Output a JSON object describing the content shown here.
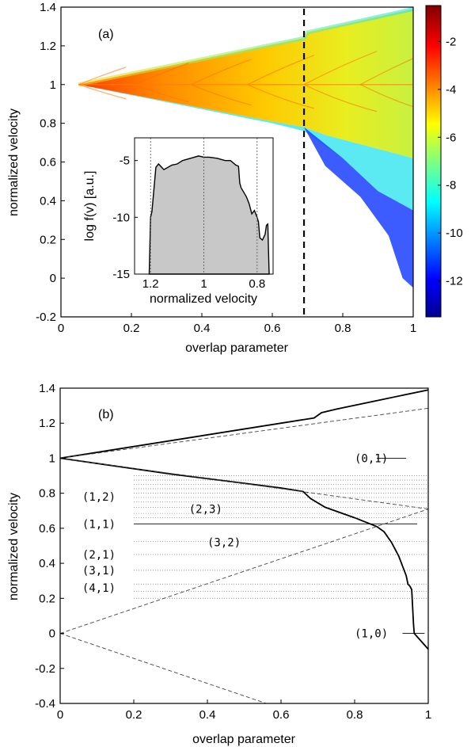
{
  "chart_data": [
    {
      "type": "heatmap",
      "panel_label": "(a)",
      "xlabel": "overlap parameter",
      "ylabel": "normalized velocity",
      "xlim": [
        0,
        1
      ],
      "ylim": [
        -0.2,
        1.4
      ],
      "xticks": [
        "0",
        "0.2",
        "0.4",
        "0.6",
        "0.8",
        "1"
      ],
      "yticks": [
        "-0.2",
        "0",
        "0.2",
        "0.4",
        "0.6",
        "0.8",
        "1",
        "1.2",
        "1.4"
      ],
      "colorbar_ticks": [
        "-2",
        "-4",
        "-6",
        "-8",
        "-10",
        "-12"
      ],
      "colormap": "jet",
      "colorbar_range": [
        -13.5,
        -0.5
      ],
      "dashed_line_x": 0.69,
      "envelope_upper": [
        [
          0.05,
          1.0
        ],
        [
          0.69,
          1.24
        ],
        [
          0.7,
          1.27
        ],
        [
          1.0,
          1.39
        ]
      ],
      "envelope_lower": [
        [
          0.05,
          1.0
        ],
        [
          0.6,
          0.81
        ],
        [
          0.69,
          0.78
        ],
        [
          0.75,
          0.58
        ],
        [
          0.85,
          0.42
        ],
        [
          0.93,
          0.22
        ],
        [
          0.97,
          0.0
        ],
        [
          1.0,
          -0.05
        ]
      ],
      "inset": {
        "type": "area",
        "xlabel": "normalized velocity",
        "ylabel": "log f(v) [a.u.]",
        "xticks": [
          "1.2",
          "1",
          "0.8"
        ],
        "yticks": [
          "-5",
          "-10",
          "-15"
        ],
        "xlim": [
          1.26,
          0.74
        ],
        "ylim": [
          -15,
          -3
        ],
        "vlines": [
          1.2,
          1.0,
          0.8
        ],
        "x": [
          1.205,
          1.2,
          1.195,
          1.19,
          1.18,
          1.17,
          1.15,
          1.12,
          1.1,
          1.08,
          1.05,
          1.02,
          1.0,
          0.98,
          0.95,
          0.92,
          0.9,
          0.88,
          0.87,
          0.865,
          0.86,
          0.85,
          0.84,
          0.83,
          0.82,
          0.81,
          0.8,
          0.795,
          0.79,
          0.78,
          0.77,
          0.765,
          0.76,
          0.755
        ],
        "y": [
          -15,
          -10,
          -9.5,
          -8.2,
          -5.6,
          -5.3,
          -5.8,
          -5.4,
          -5.3,
          -5.0,
          -4.8,
          -4.6,
          -4.7,
          -4.7,
          -4.8,
          -5.0,
          -5.0,
          -5.4,
          -5.5,
          -7.0,
          -7.4,
          -7.8,
          -8.2,
          -8.8,
          -9.7,
          -9.4,
          -10.0,
          -10.4,
          -11.8,
          -12.0,
          -11.5,
          -10.7,
          -10.6,
          -15
        ]
      }
    },
    {
      "type": "line",
      "panel_label": "(b)",
      "xlabel": "overlap parameter",
      "ylabel": "normalized velocity",
      "xlim": [
        0,
        1
      ],
      "ylim": [
        -0.4,
        1.4
      ],
      "xticks": [
        "0",
        "0.2",
        "0.4",
        "0.6",
        "0.8",
        "1"
      ],
      "yticks": [
        "-0.4",
        "-0.2",
        "0",
        "0.2",
        "0.4",
        "0.6",
        "0.8",
        "1",
        "1.2",
        "1.4"
      ],
      "series": [
        {
          "style": "solid",
          "x": [
            0,
            0.69,
            0.71,
            0.75,
            1.0
          ],
          "y": [
            1.0,
            1.23,
            1.26,
            1.28,
            1.39
          ]
        },
        {
          "style": "solid",
          "x": [
            0,
            0.3,
            0.6,
            0.66,
            0.68,
            0.72,
            0.8,
            0.86,
            0.88,
            0.9,
            0.91,
            0.92,
            0.94,
            0.945,
            0.95,
            0.955,
            0.96,
            0.962,
            1.0
          ],
          "y": [
            1.0,
            0.91,
            0.83,
            0.81,
            0.77,
            0.72,
            0.66,
            0.61,
            0.58,
            0.52,
            0.48,
            0.44,
            0.33,
            0.28,
            0.27,
            0.25,
            0.05,
            0.0,
            -0.09
          ]
        },
        {
          "style": "dashed",
          "x": [
            0,
            1.0
          ],
          "y": [
            1.0,
            1.285
          ]
        },
        {
          "style": "dashed",
          "x": [
            0,
            1.0
          ],
          "y": [
            1.0,
            0.71
          ]
        },
        {
          "style": "dashed",
          "x": [
            0,
            1.0
          ],
          "y": [
            0.0,
            0.71
          ]
        },
        {
          "style": "dashed",
          "x": [
            0,
            0.56
          ],
          "y": [
            0.0,
            -0.4
          ]
        }
      ],
      "solid_hlines": [
        {
          "y": 1.0,
          "x": [
            0.86,
            0.94
          ]
        },
        {
          "y": 0.625,
          "x": [
            0.2,
            0.97
          ]
        },
        {
          "y": 0.0,
          "x": [
            0.93,
            0.99
          ]
        }
      ],
      "dotted_hlines_y": [
        0.9,
        0.875,
        0.85,
        0.826,
        0.8,
        0.776,
        0.75,
        0.72,
        0.685,
        0.66,
        0.525,
        0.45,
        0.36,
        0.28,
        0.24,
        0.2
      ],
      "dotted_hlines_x": [
        0.2,
        1.0
      ],
      "annotations": [
        {
          "text": "(0,1)",
          "x": 0.8,
          "y": 1.0
        },
        {
          "text": "(1,2)",
          "x": 0.06,
          "y": 0.78
        },
        {
          "text": "(2,3)",
          "x": 0.35,
          "y": 0.71
        },
        {
          "text": "(1,1)",
          "x": 0.06,
          "y": 0.625
        },
        {
          "text": "(3,2)",
          "x": 0.4,
          "y": 0.52
        },
        {
          "text": "(2,1)",
          "x": 0.06,
          "y": 0.45
        },
        {
          "text": "(3,1)",
          "x": 0.06,
          "y": 0.36
        },
        {
          "text": "(4,1)",
          "x": 0.06,
          "y": 0.26
        },
        {
          "text": "(1,0)",
          "x": 0.8,
          "y": 0.0
        }
      ]
    }
  ]
}
